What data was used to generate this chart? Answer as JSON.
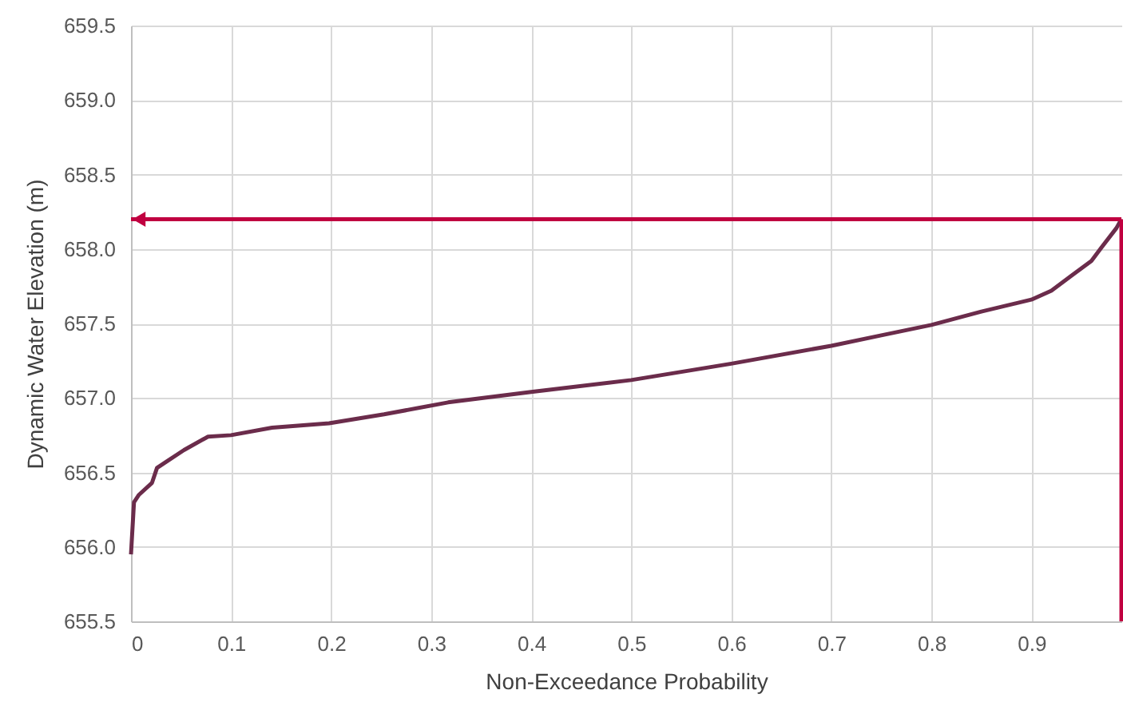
{
  "chart_data": {
    "type": "line",
    "xlabel": "Non-Exceedance Probability",
    "ylabel": "Dynamic Water Elevation (m)",
    "x": [
      0,
      0.003,
      0.008,
      0.021,
      0.026,
      0.035,
      0.053,
      0.077,
      0.1,
      0.141,
      0.198,
      0.253,
      0.317,
      0.4,
      0.5,
      0.6,
      0.7,
      0.75,
      0.8,
      0.85,
      0.9,
      0.92,
      0.94,
      0.96,
      0.97,
      0.985,
      0.99
    ],
    "series": [
      {
        "color": "#6b2c4b",
        "values": [
          655.95,
          656.3,
          656.35,
          656.43,
          656.53,
          656.57,
          656.65,
          656.74,
          656.75,
          656.8,
          656.83,
          656.89,
          656.97,
          657.04,
          657.12,
          657.23,
          657.35,
          657.42,
          657.49,
          657.58,
          657.66,
          657.72,
          657.82,
          657.92,
          658.01,
          658.14,
          658.2
        ]
      }
    ],
    "xlim": [
      0,
      0.99
    ],
    "xticks": [
      0,
      0.1,
      0.2,
      0.3,
      0.4,
      0.5,
      0.6,
      0.7,
      0.8,
      0.9
    ],
    "ylim": [
      655.5,
      659.5
    ],
    "yticks": [
      {
        "value": 655.5,
        "label": "655.5"
      },
      {
        "value": 656,
        "label": "656.0"
      },
      {
        "value": 656.5,
        "label": "656.5"
      },
      {
        "value": 657,
        "label": "657.0"
      },
      {
        "value": 657.5,
        "label": "657.5"
      },
      {
        "value": 658,
        "label": "658.0"
      },
      {
        "value": 658.5,
        "label": "658.5"
      },
      {
        "value": 659,
        "label": "659.0"
      },
      {
        "value": 659.5,
        "label": "659.5"
      }
    ],
    "grid": true,
    "ref_lines": [
      {
        "axis": "y",
        "value": 658.2,
        "color": "#c00040"
      },
      {
        "axis": "x",
        "value": 0.99,
        "color": "#c00040"
      }
    ]
  }
}
